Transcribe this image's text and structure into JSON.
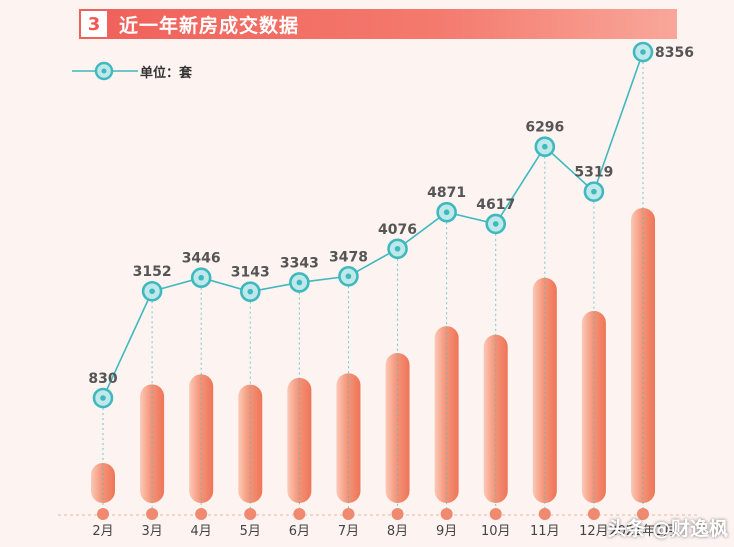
{
  "header": {
    "number": "3",
    "title": "近一年新房成交数据"
  },
  "legend": {
    "label": "单位：套"
  },
  "watermark": {
    "text": "头条 @财逸枫"
  },
  "colors": {
    "title_bar": "#f0605a",
    "line": "#3fb8be",
    "bar_light": "#f9c4b0",
    "bar_dark": "#f07a5e",
    "background": "#fdf3f1"
  },
  "chart_data": {
    "type": "bar",
    "title": "近一年新房成交数据",
    "unit": "单位：套",
    "categories": [
      "2月",
      "3月",
      "4月",
      "5月",
      "6月",
      "7月",
      "8月",
      "9月",
      "10月",
      "11月",
      "12月",
      "2021年1月"
    ],
    "values": [
      830,
      3152,
      3446,
      3143,
      3343,
      3478,
      4076,
      4871,
      4617,
      6296,
      5319,
      8356
    ],
    "data_labels": [
      "830",
      "3152",
      "3446",
      "3143",
      "3343",
      "3478",
      "4076",
      "4871",
      "4617",
      "6296",
      "5319",
      "8356"
    ],
    "line_overlay": true,
    "grid": false,
    "legend_position": "top-left"
  }
}
